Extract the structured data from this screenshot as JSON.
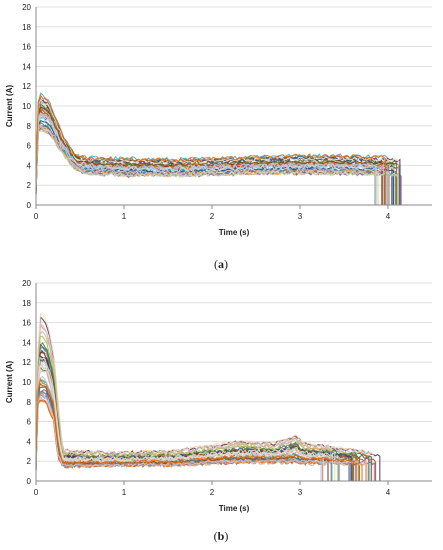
{
  "chart_data": [
    {
      "type": "line",
      "caption": "a",
      "xlabel": "Time (s)",
      "ylabel": "Current (A)",
      "xlim": [
        0,
        4.5
      ],
      "ylim": [
        0,
        20
      ],
      "xticks": [
        "0",
        "1",
        "2",
        "3",
        "4"
      ],
      "yticks": [
        "0",
        "2",
        "4",
        "6",
        "8",
        "10",
        "12",
        "14",
        "16",
        "18",
        "20"
      ],
      "grid": "horizontal",
      "legend": "none",
      "series_description": "many overlapping current traces",
      "envelope": {
        "upper": [
          [
            0,
            9.5
          ],
          [
            0.05,
            11.2
          ],
          [
            0.15,
            10.5
          ],
          [
            0.3,
            7.2
          ],
          [
            0.45,
            5.0
          ],
          [
            0.6,
            4.8
          ],
          [
            1.0,
            4.7
          ],
          [
            1.6,
            4.6
          ],
          [
            2.0,
            4.7
          ],
          [
            2.5,
            4.9
          ],
          [
            3.0,
            5.0
          ],
          [
            3.5,
            5.0
          ],
          [
            3.9,
            4.9
          ],
          [
            4.1,
            4.8
          ]
        ],
        "lower": [
          [
            0,
            7.0
          ],
          [
            0.05,
            7.6
          ],
          [
            0.15,
            7.3
          ],
          [
            0.3,
            5.2
          ],
          [
            0.45,
            3.6
          ],
          [
            0.6,
            3.2
          ],
          [
            1.0,
            3.0
          ],
          [
            1.6,
            3.0
          ],
          [
            2.0,
            3.1
          ],
          [
            2.5,
            3.2
          ],
          [
            3.0,
            3.2
          ],
          [
            3.5,
            3.2
          ],
          [
            3.9,
            3.1
          ],
          [
            4.1,
            3.0
          ]
        ]
      },
      "end_range": [
        3.85,
        4.15
      ]
    },
    {
      "type": "line",
      "caption": "b",
      "xlabel": "Time (s)",
      "ylabel": "Current (A)",
      "xlim": [
        0,
        4.5
      ],
      "ylim": [
        0,
        20
      ],
      "xticks": [
        "0",
        "1",
        "2",
        "3",
        "4"
      ],
      "yticks": [
        "0",
        "2",
        "4",
        "6",
        "8",
        "10",
        "12",
        "14",
        "16",
        "18",
        "20"
      ],
      "grid": "horizontal",
      "legend": "none",
      "series_description": "many overlapping current traces",
      "envelope": {
        "upper": [
          [
            0,
            9.5
          ],
          [
            0.05,
            17.0
          ],
          [
            0.12,
            16.2
          ],
          [
            0.2,
            13.0
          ],
          [
            0.25,
            8.0
          ],
          [
            0.3,
            3.2
          ],
          [
            0.5,
            3.0
          ],
          [
            1.0,
            2.9
          ],
          [
            1.5,
            3.0
          ],
          [
            2.0,
            3.6
          ],
          [
            2.3,
            4.0
          ],
          [
            2.7,
            3.8
          ],
          [
            2.95,
            4.6
          ],
          [
            3.05,
            3.8
          ],
          [
            3.4,
            3.4
          ],
          [
            3.7,
            3.0
          ],
          [
            3.9,
            2.6
          ]
        ],
        "lower": [
          [
            0,
            7.5
          ],
          [
            0.05,
            8.0
          ],
          [
            0.12,
            7.8
          ],
          [
            0.2,
            6.0
          ],
          [
            0.25,
            2.4
          ],
          [
            0.3,
            1.5
          ],
          [
            0.5,
            1.5
          ],
          [
            1.0,
            1.6
          ],
          [
            1.5,
            1.6
          ],
          [
            2.0,
            1.8
          ],
          [
            2.3,
            1.9
          ],
          [
            2.7,
            1.9
          ],
          [
            2.95,
            1.9
          ],
          [
            3.05,
            1.8
          ],
          [
            3.4,
            1.8
          ],
          [
            3.7,
            1.7
          ],
          [
            3.9,
            1.6
          ]
        ]
      },
      "end_range": [
        3.2,
        3.95
      ]
    }
  ],
  "colors": {
    "grid": "#d9d9d9",
    "axis": "#888888",
    "traces": [
      "#4f81bd",
      "#c0504d",
      "#9bbb59",
      "#8064a2",
      "#4bacc6",
      "#f79646",
      "#2c4d75",
      "#772c2a",
      "#5f7530",
      "#4d3b62",
      "#276a7c",
      "#b65708",
      "#a9c4e8",
      "#e6b9b8",
      "#d7e4bd",
      "#ccc1da",
      "#b7dee8",
      "#fcd5b5",
      "#c4bd97",
      "#e46c0a"
    ]
  }
}
